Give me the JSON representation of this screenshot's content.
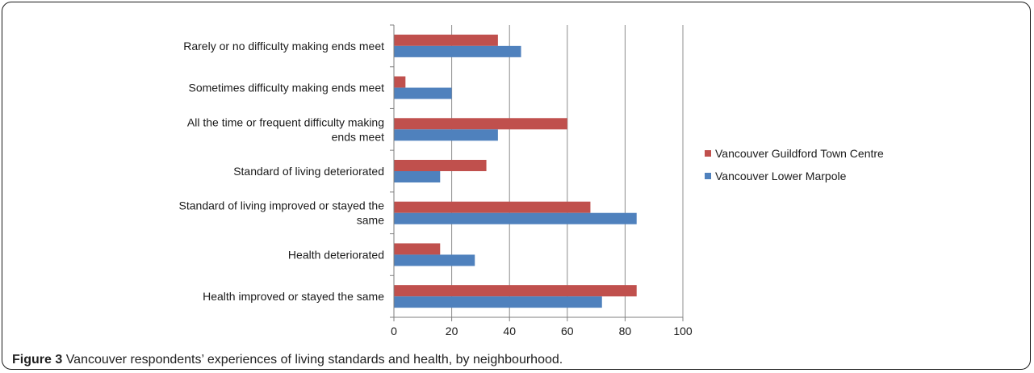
{
  "chart_data": {
    "type": "bar",
    "orientation": "horizontal",
    "categories": [
      [
        "Rarely or no difficulty making ends meet"
      ],
      [
        "Sometimes difficulty making ends meet"
      ],
      [
        "All the time or frequent difficulty making",
        "ends meet"
      ],
      [
        "Standard of living deteriorated"
      ],
      [
        "Standard of living improved or stayed the",
        "same"
      ],
      [
        "Health deteriorated"
      ],
      [
        "Health improved or stayed the same"
      ]
    ],
    "series": [
      {
        "name": "Vancouver Guildford Town Centre",
        "color": "#c0504d",
        "values": [
          36,
          4,
          60,
          32,
          68,
          16,
          84
        ]
      },
      {
        "name": "Vancouver Lower Marpole",
        "color": "#4f81bd",
        "values": [
          44,
          20,
          36,
          16,
          84,
          28,
          72
        ]
      }
    ],
    "xlim": [
      0,
      100
    ],
    "xticks": [
      0,
      20,
      40,
      60,
      80,
      100
    ],
    "grid": true,
    "legend_position": "right",
    "title": "",
    "xlabel": "",
    "ylabel": ""
  },
  "caption": {
    "label": "Figure 3",
    "text": "Vancouver respondents’ experiences of living standards and health, by neighbourhood."
  }
}
